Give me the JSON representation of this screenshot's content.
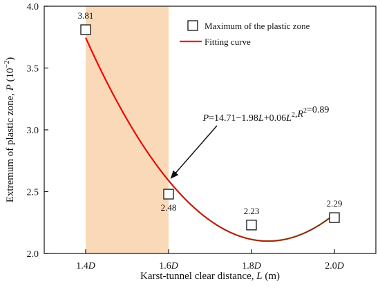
{
  "chart_data": {
    "type": "scatter",
    "xlabel": "Karst-tunnel clear distance, L (m)",
    "ylabel": "Extremum of plastic zone, P (10^-2)",
    "xlim": [
      1.3,
      2.1
    ],
    "ylim": [
      2.0,
      4.0
    ],
    "x_ticks": [
      1.4,
      1.6,
      1.8,
      2.0
    ],
    "x_tick_labels": [
      "1.4D",
      "1.6D",
      "1.8D",
      "2.0D"
    ],
    "y_ticks": [
      2.0,
      2.5,
      3.0,
      3.5,
      4.0
    ],
    "y_tick_labels": [
      "2.0",
      "2.5",
      "3.0",
      "3.5",
      "4.0"
    ],
    "grid": false,
    "highlight_band": {
      "x_from": 1.4,
      "x_to": 1.6,
      "color": "#fad9b8"
    },
    "series": [
      {
        "name": "Maximum of the plastic zone",
        "marker": "open-square",
        "x": [
          1.4,
          1.6,
          1.8,
          2.0
        ],
        "y": [
          3.81,
          2.48,
          2.23,
          2.29
        ],
        "labels": [
          "3.81",
          "2.48",
          "2.23",
          "2.29"
        ]
      },
      {
        "name": "Fitting curve",
        "kind": "fit",
        "gradient": [
          "#ff0000",
          "#7a3a12"
        ]
      }
    ],
    "legend_position": "top-right",
    "annotation": {
      "equation": "P=14.71−1.98L+0.06L²,R²=0.89",
      "arrow_to_x": 1.6
    }
  }
}
